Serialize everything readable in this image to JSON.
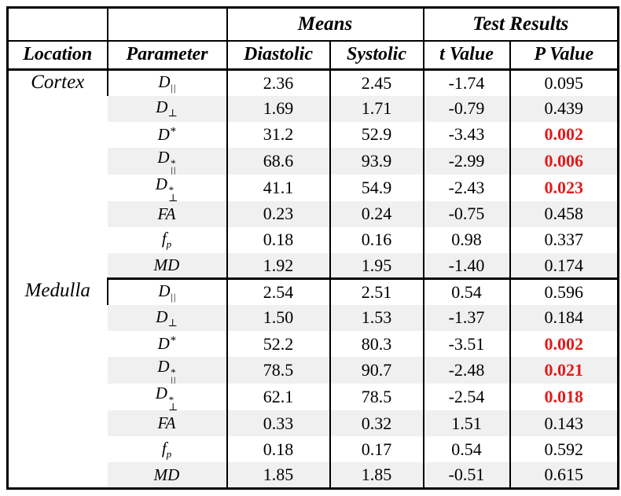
{
  "table": {
    "header_groups": {
      "means": "Means",
      "test_results": "Test Results"
    },
    "columns": [
      "Location",
      "Parameter",
      "Diastolic",
      "Systolic",
      "t Value",
      "P Value"
    ],
    "colors": {
      "significant": "#e21b1b",
      "stripe": "#f0f0f0",
      "border": "#000000"
    },
    "sections": [
      {
        "location": "Cortex",
        "rows": [
          {
            "param": {
              "base": "D",
              "sub": "||"
            },
            "diastolic": "2.36",
            "systolic": "2.45",
            "t": "-1.74",
            "p": "0.095",
            "sig": false
          },
          {
            "param": {
              "base": "D",
              "sub": "⊥"
            },
            "diastolic": "1.69",
            "systolic": "1.71",
            "t": "-0.79",
            "p": "0.439",
            "sig": false
          },
          {
            "param": {
              "base": "D",
              "sup": "*"
            },
            "diastolic": "31.2",
            "systolic": "52.9",
            "t": "-3.43",
            "p": "0.002",
            "sig": true
          },
          {
            "param": {
              "base": "D",
              "sub": "||",
              "sup": "*"
            },
            "diastolic": "68.6",
            "systolic": "93.9",
            "t": "-2.99",
            "p": "0.006",
            "sig": true
          },
          {
            "param": {
              "base": "D",
              "sub": "⊥",
              "sup": "*"
            },
            "diastolic": "41.1",
            "systolic": "54.9",
            "t": "-2.43",
            "p": "0.023",
            "sig": true
          },
          {
            "param": {
              "base": "FA"
            },
            "diastolic": "0.23",
            "systolic": "0.24",
            "t": "-0.75",
            "p": "0.458",
            "sig": false
          },
          {
            "param": {
              "base": "f",
              "sub": "p"
            },
            "diastolic": "0.18",
            "systolic": "0.16",
            "t": "0.98",
            "p": "0.337",
            "sig": false
          },
          {
            "param": {
              "base": "MD"
            },
            "diastolic": "1.92",
            "systolic": "1.95",
            "t": "-1.40",
            "p": "0.174",
            "sig": false
          }
        ]
      },
      {
        "location": "Medulla",
        "rows": [
          {
            "param": {
              "base": "D",
              "sub": "||"
            },
            "diastolic": "2.54",
            "systolic": "2.51",
            "t": "0.54",
            "p": "0.596",
            "sig": false
          },
          {
            "param": {
              "base": "D",
              "sub": "⊥"
            },
            "diastolic": "1.50",
            "systolic": "1.53",
            "t": "-1.37",
            "p": "0.184",
            "sig": false
          },
          {
            "param": {
              "base": "D",
              "sup": "*"
            },
            "diastolic": "52.2",
            "systolic": "80.3",
            "t": "-3.51",
            "p": "0.002",
            "sig": true
          },
          {
            "param": {
              "base": "D",
              "sub": "||",
              "sup": "*"
            },
            "diastolic": "78.5",
            "systolic": "90.7",
            "t": "-2.48",
            "p": "0.021",
            "sig": true
          },
          {
            "param": {
              "base": "D",
              "sub": "⊥",
              "sup": "*"
            },
            "diastolic": "62.1",
            "systolic": "78.5",
            "t": "-2.54",
            "p": "0.018",
            "sig": true
          },
          {
            "param": {
              "base": "FA"
            },
            "diastolic": "0.33",
            "systolic": "0.32",
            "t": "1.51",
            "p": "0.143",
            "sig": false
          },
          {
            "param": {
              "base": "f",
              "sub": "p"
            },
            "diastolic": "0.18",
            "systolic": "0.17",
            "t": "0.54",
            "p": "0.592",
            "sig": false
          },
          {
            "param": {
              "base": "MD"
            },
            "diastolic": "1.85",
            "systolic": "1.85",
            "t": "-0.51",
            "p": "0.615",
            "sig": false
          }
        ]
      }
    ]
  }
}
